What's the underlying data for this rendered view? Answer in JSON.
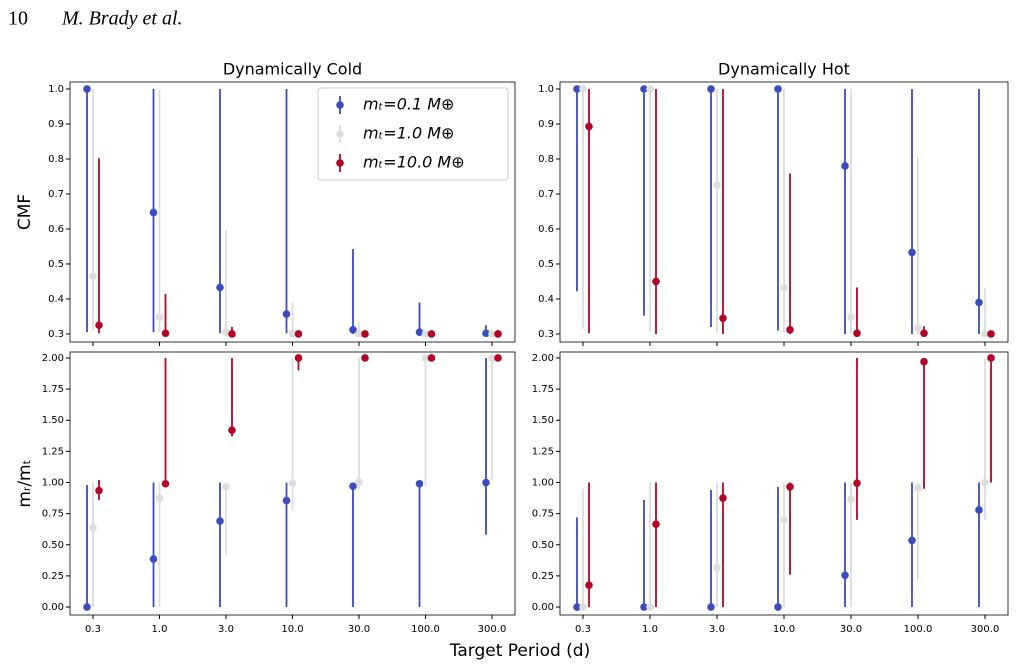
{
  "page_number": "10",
  "running_head": "M. Brady et al.",
  "xlabel": "Target Period (d)",
  "chart_data": [
    {
      "type": "errorbar",
      "title": "Dynamically Cold",
      "ylabel": "CMF",
      "categories": [
        "0.3",
        "1.0",
        "3.0",
        "10.0",
        "30.0",
        "100.0",
        "300.0"
      ],
      "ylim": [
        0.277,
        1.02
      ],
      "yticks": [
        0.3,
        0.4,
        0.5,
        0.6,
        0.7,
        0.8,
        0.9,
        {
          "value": 1,
          "label": "1.0"
        }
      ],
      "legend": "upper right",
      "series": [
        {
          "name": "mₜ=0.1 M⊕",
          "color": "#3b4cc0",
          "values": [
            1.0,
            0.647,
            0.433,
            0.357,
            0.312,
            0.305,
            0.302
          ],
          "lower": [
            0.305,
            0.305,
            0.302,
            0.302,
            0.3,
            0.3,
            0.3
          ],
          "upper": [
            1.0,
            1.0,
            1.0,
            1.0,
            0.543,
            0.39,
            0.325
          ]
        },
        {
          "name": "mₜ=1.0 M⊕",
          "color": "#dddddd",
          "values": [
            0.465,
            0.348,
            0.305,
            0.302,
            0.3,
            0.3,
            0.3
          ],
          "lower": [
            0.31,
            0.305,
            0.3,
            0.3,
            0.3,
            0.3,
            0.3
          ],
          "upper": [
            1.0,
            1.0,
            0.597,
            0.392,
            0.335,
            0.31,
            0.305
          ]
        },
        {
          "name": "mₜ=10.0 M⊕",
          "color": "#b40426",
          "values": [
            0.325,
            0.302,
            0.3,
            0.3,
            0.3,
            0.3,
            0.3
          ],
          "lower": [
            0.302,
            0.3,
            0.3,
            0.3,
            0.3,
            0.3,
            0.3
          ],
          "upper": [
            0.802,
            0.414,
            0.32,
            0.305,
            0.305,
            0.305,
            0.305
          ]
        }
      ]
    },
    {
      "type": "errorbar",
      "title": "Dynamically Hot",
      "categories": [
        "0.3",
        "1.0",
        "3.0",
        "10.0",
        "30.0",
        "100.0",
        "300.0"
      ],
      "ylim": [
        0.277,
        1.02
      ],
      "yticks": [
        0.3,
        0.4,
        0.5,
        0.6,
        0.7,
        0.8,
        0.9,
        {
          "value": 1,
          "label": "1.0"
        }
      ],
      "series": [
        {
          "color": "#3b4cc0",
          "values": [
            1.0,
            1.0,
            1.0,
            1.0,
            0.78,
            0.533,
            0.39
          ],
          "lower": [
            0.422,
            0.352,
            0.32,
            0.31,
            0.3,
            0.3,
            0.3
          ],
          "upper": [
            1.0,
            1.0,
            1.0,
            1.0,
            1.0,
            1.0,
            1.0
          ]
        },
        {
          "color": "#dddddd",
          "values": [
            1.0,
            1.0,
            0.725,
            0.432,
            0.348,
            0.318,
            0.3
          ],
          "lower": [
            0.315,
            0.305,
            0.305,
            0.305,
            0.3,
            0.3,
            0.3
          ],
          "upper": [
            1.0,
            1.0,
            1.0,
            1.0,
            1.0,
            0.803,
            0.432
          ]
        },
        {
          "color": "#b40426",
          "values": [
            0.893,
            0.45,
            0.345,
            0.312,
            0.302,
            0.302,
            0.3
          ],
          "lower": [
            0.302,
            0.3,
            0.3,
            0.3,
            0.3,
            0.3,
            0.3
          ],
          "upper": [
            1.0,
            1.0,
            1.0,
            0.758,
            0.433,
            0.322,
            0.305
          ]
        }
      ]
    },
    {
      "type": "errorbar",
      "ylabel": "mᵣ/mₜ",
      "categories": [
        "0.3",
        "1.0",
        "3.0",
        "10.0",
        "30.0",
        "100.0",
        "300.0"
      ],
      "ylim": [
        -0.064,
        2.048
      ],
      "yticks": [
        {
          "value": 0,
          "label": "0.00"
        },
        0.25,
        {
          "value": 0.5,
          "label": "0.50"
        },
        0.75,
        {
          "value": 1,
          "label": "1.00"
        },
        1.25,
        {
          "value": 1.5,
          "label": "1.50"
        },
        1.75,
        {
          "value": 2,
          "label": "2.00"
        }
      ],
      "series": [
        {
          "color": "#3b4cc0",
          "values": [
            0.0,
            0.385,
            0.69,
            0.855,
            0.97,
            0.99,
            1.0
          ],
          "lower": [
            0,
            0,
            0,
            0,
            0,
            0,
            0.58
          ],
          "upper": [
            0.98,
            1.0,
            1.0,
            1.0,
            1.0,
            1.0,
            2.0
          ]
        },
        {
          "color": "#dddddd",
          "values": [
            0.635,
            0.875,
            0.965,
            0.995,
            1.005,
            2.0,
            2.0
          ],
          "lower": [
            0,
            0,
            0.415,
            0.78,
            0.95,
            0.97,
            1.02
          ],
          "upper": [
            1.0,
            1.0,
            1.0,
            2.0,
            2.0,
            2.0,
            2.0
          ]
        },
        {
          "color": "#b40426",
          "values": [
            0.935,
            0.99,
            1.42,
            2.0,
            2.0,
            2.0,
            2.0
          ],
          "lower": [
            0.86,
            0.98,
            1.37,
            1.9,
            2.0,
            2.0,
            2.0
          ],
          "upper": [
            1.02,
            2.0,
            2.0,
            2.0,
            2.0,
            2.0,
            2.0
          ]
        }
      ]
    },
    {
      "type": "errorbar",
      "categories": [
        "0.3",
        "1.0",
        "3.0",
        "10.0",
        "30.0",
        "100.0",
        "300.0"
      ],
      "ylim": [
        -0.064,
        2.048
      ],
      "yticks": [
        {
          "value": 0,
          "label": "0.00"
        },
        0.25,
        {
          "value": 0.5,
          "label": "0.50"
        },
        0.75,
        {
          "value": 1,
          "label": "1.00"
        },
        1.25,
        {
          "value": 1.5,
          "label": "1.50"
        },
        1.75,
        {
          "value": 2,
          "label": "2.00"
        }
      ],
      "series": [
        {
          "color": "#3b4cc0",
          "values": [
            0,
            0,
            0,
            0,
            0.255,
            0.535,
            0.78
          ],
          "lower": [
            0,
            0,
            0,
            0,
            0,
            0,
            0
          ],
          "upper": [
            0.72,
            0.86,
            0.94,
            0.965,
            1.0,
            1.0,
            1.0
          ]
        },
        {
          "color": "#dddddd",
          "values": [
            0,
            0,
            0.315,
            0.7,
            0.865,
            0.955,
            1.0
          ],
          "lower": [
            0,
            0,
            0,
            0,
            0,
            0.22,
            0.7
          ],
          "upper": [
            0.95,
            1.0,
            1.0,
            1.0,
            1.0,
            1.0,
            2.0
          ]
        },
        {
          "color": "#b40426",
          "values": [
            0.175,
            0.665,
            0.875,
            0.965,
            0.995,
            1.97,
            2.0
          ],
          "lower": [
            0,
            0,
            0,
            0.26,
            0.7,
            0.95,
            1.0
          ],
          "upper": [
            1.0,
            1.0,
            1.0,
            1.0,
            2.0,
            2.0,
            2.0
          ]
        }
      ]
    }
  ]
}
